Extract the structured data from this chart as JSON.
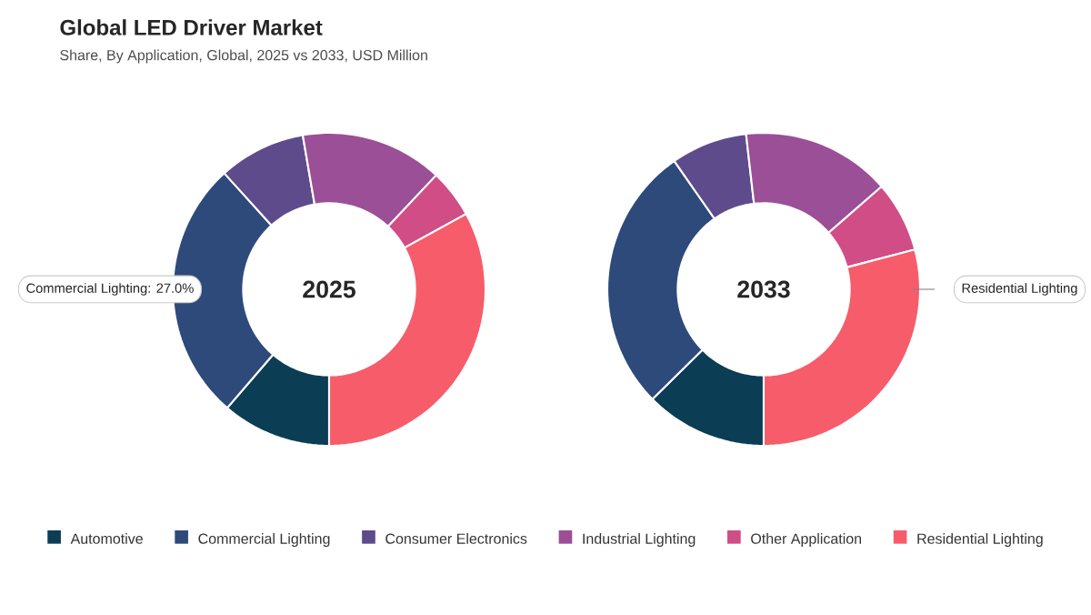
{
  "chart_data": {
    "type": "donut",
    "title": "Global LED Driver Market",
    "subtitle": "Share, By Application, Global, 2025 vs 2033, USD Million",
    "categories": [
      "Automotive",
      "Commercial Lighting",
      "Consumer Electronics",
      "Industrial Lighting",
      "Other Application",
      "Residential Lighting"
    ],
    "colors": [
      "#0b3d55",
      "#2d4a7a",
      "#5e4b8b",
      "#9b4f96",
      "#d04d86",
      "#f65c6a"
    ],
    "series": [
      {
        "name": "2025",
        "values": [
          11.3,
          27.0,
          9.0,
          14.7,
          5.0,
          33.0
        ]
      },
      {
        "name": "2033",
        "values": [
          12.6,
          27.7,
          7.9,
          15.4,
          7.3,
          29.1
        ]
      }
    ],
    "annotations": [
      "Commercial Lighting: 27.0%",
      "Residential Lighting"
    ],
    "legend": "bottom"
  }
}
